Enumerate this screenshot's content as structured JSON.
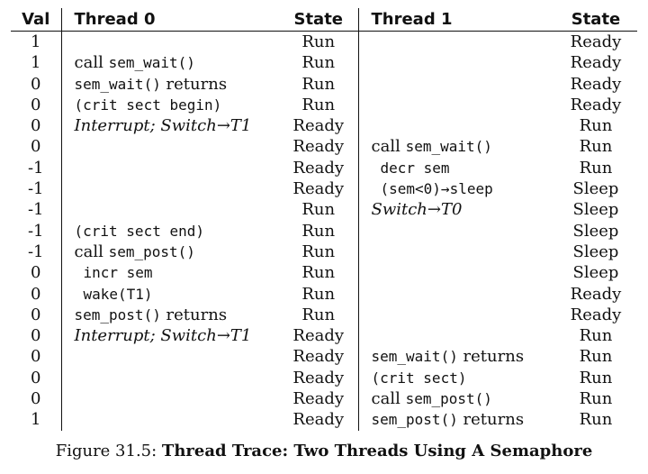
{
  "headers": {
    "val": "Val",
    "thread0": "Thread 0",
    "state0": "State",
    "thread1": "Thread 1",
    "state1": "State"
  },
  "rows": [
    {
      "val": "1",
      "t0": [],
      "s0": "Run",
      "t1": [],
      "s1": "Ready"
    },
    {
      "val": "1",
      "t0": [
        {
          "t": "call ",
          "s": "text"
        },
        {
          "t": "sem_wait()",
          "s": "code"
        }
      ],
      "s0": "Run",
      "t1": [],
      "s1": "Ready"
    },
    {
      "val": "0",
      "t0": [
        {
          "t": "sem_wait()",
          "s": "code"
        },
        {
          "t": " returns",
          "s": "text"
        }
      ],
      "s0": "Run",
      "t1": [],
      "s1": "Ready"
    },
    {
      "val": "0",
      "t0": [
        {
          "t": "(crit sect begin)",
          "s": "code"
        }
      ],
      "s0": "Run",
      "t1": [],
      "s1": "Ready"
    },
    {
      "val": "0",
      "t0": [
        {
          "t": "Interrupt; Switch→T1",
          "s": "italic"
        }
      ],
      "s0": "Ready",
      "t1": [],
      "s1": "Run"
    },
    {
      "val": "0",
      "t0": [],
      "s0": "Ready",
      "t1": [
        {
          "t": "call ",
          "s": "text"
        },
        {
          "t": "sem_wait()",
          "s": "code"
        }
      ],
      "s1": "Run"
    },
    {
      "val": "-1",
      "t0": [],
      "s0": "Ready",
      "t1": [
        {
          "t": "decr sem",
          "s": "code",
          "indent": true
        }
      ],
      "s1": "Run"
    },
    {
      "val": "-1",
      "t0": [],
      "s0": "Ready",
      "t1": [
        {
          "t": "(sem<0)→sleep",
          "s": "code",
          "indent": true
        }
      ],
      "s1": "Sleep"
    },
    {
      "val": "-1",
      "t0": [],
      "s0": "Run",
      "t1": [
        {
          "t": "Switch→T0",
          "s": "italic"
        }
      ],
      "s1": "Sleep"
    },
    {
      "val": "-1",
      "t0": [
        {
          "t": "(crit sect end)",
          "s": "code"
        }
      ],
      "s0": "Run",
      "t1": [],
      "s1": "Sleep"
    },
    {
      "val": "-1",
      "t0": [
        {
          "t": "call ",
          "s": "text"
        },
        {
          "t": "sem_post()",
          "s": "code"
        }
      ],
      "s0": "Run",
      "t1": [],
      "s1": "Sleep"
    },
    {
      "val": "0",
      "t0": [
        {
          "t": "incr sem",
          "s": "code",
          "indent": true
        }
      ],
      "s0": "Run",
      "t1": [],
      "s1": "Sleep"
    },
    {
      "val": "0",
      "t0": [
        {
          "t": "wake(T1)",
          "s": "code",
          "indent": true
        }
      ],
      "s0": "Run",
      "t1": [],
      "s1": "Ready"
    },
    {
      "val": "0",
      "t0": [
        {
          "t": "sem_post()",
          "s": "code"
        },
        {
          "t": " returns",
          "s": "text"
        }
      ],
      "s0": "Run",
      "t1": [],
      "s1": "Ready"
    },
    {
      "val": "0",
      "t0": [
        {
          "t": "Interrupt; Switch→T1",
          "s": "italic"
        }
      ],
      "s0": "Ready",
      "t1": [],
      "s1": "Run"
    },
    {
      "val": "0",
      "t0": [],
      "s0": "Ready",
      "t1": [
        {
          "t": "sem_wait()",
          "s": "code"
        },
        {
          "t": " returns",
          "s": "text"
        }
      ],
      "s1": "Run"
    },
    {
      "val": "0",
      "t0": [],
      "s0": "Ready",
      "t1": [
        {
          "t": "(crit sect)",
          "s": "code"
        }
      ],
      "s1": "Run"
    },
    {
      "val": "0",
      "t0": [],
      "s0": "Ready",
      "t1": [
        {
          "t": "call ",
          "s": "text"
        },
        {
          "t": "sem_post()",
          "s": "code"
        }
      ],
      "s1": "Run"
    },
    {
      "val": "1",
      "t0": [],
      "s0": "Ready",
      "t1": [
        {
          "t": "sem_post()",
          "s": "code"
        },
        {
          "t": " returns",
          "s": "text"
        }
      ],
      "s1": "Run"
    }
  ],
  "caption": {
    "label": "Figure 31.5: ",
    "title": "Thread Trace: Two Threads Using A Semaphore"
  }
}
